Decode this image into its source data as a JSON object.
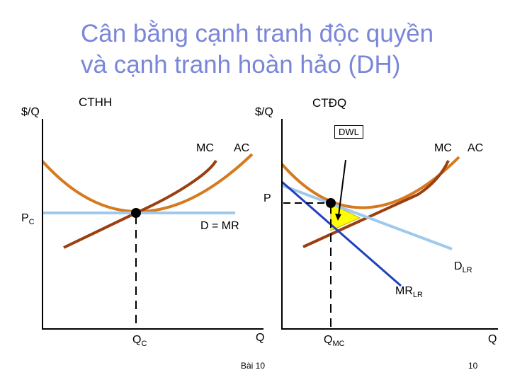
{
  "title": {
    "line1": "Cân bằng cạnh tranh độc quyền",
    "line2": "và cạnh tranh hoàn hảo (DH)"
  },
  "left_panel": {
    "y_axis_label": "$/Q",
    "heading": "CTHH",
    "mc_label": "MC",
    "ac_label": "AC",
    "price_label_main": "P",
    "price_label_sub": "C",
    "demand_label": "D = MR",
    "qty_label_main": "Q",
    "qty_label_sub": "C",
    "x_axis_label": "Q"
  },
  "right_panel": {
    "y_axis_label": "$/Q",
    "heading": "CTĐQ",
    "dwl_label": "DWL",
    "mc_label": "MC",
    "ac_label": "AC",
    "price_label": "P",
    "demand_label_main": "D",
    "demand_label_sub": "LR",
    "mr_label_main": "MR",
    "mr_label_sub": "LR",
    "qty_label_main": "Q",
    "qty_label_sub": "MC",
    "x_axis_label": "Q"
  },
  "footer": {
    "lesson": "Bài 10",
    "page_number": "10"
  },
  "colors": {
    "title": "#7a86d8",
    "ac_curve": "#d67a1e",
    "mc_curve": "#9c3f10",
    "demand_line": "#9ec9ee",
    "mr_line": "#1f3fbf",
    "dwl_fill": "#ffff00"
  }
}
